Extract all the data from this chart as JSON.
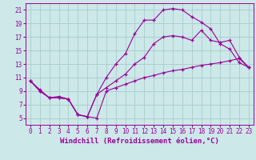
{
  "background_color": "#cce8e8",
  "grid_color": "#aacccc",
  "line_color": "#990099",
  "marker_style": "+",
  "xlabel": "Windchill (Refroidissement éolien,°C)",
  "xlabel_fontsize": 6.5,
  "xtick_fontsize": 5.5,
  "ytick_fontsize": 5.5,
  "xlim": [
    -0.5,
    23.5
  ],
  "ylim": [
    4,
    22
  ],
  "yticks": [
    5,
    7,
    9,
    11,
    13,
    15,
    17,
    19,
    21
  ],
  "xticks": [
    0,
    1,
    2,
    3,
    4,
    5,
    6,
    7,
    8,
    9,
    10,
    11,
    12,
    13,
    14,
    15,
    16,
    17,
    18,
    19,
    20,
    21,
    22,
    23
  ],
  "series": [
    {
      "x": [
        0,
        1,
        2,
        3,
        4,
        5,
        6,
        7,
        8,
        9,
        10,
        11,
        12,
        13,
        14,
        15,
        16,
        17,
        18,
        19,
        20,
        21,
        22,
        23
      ],
      "y": [
        10.5,
        9.2,
        8.0,
        8.2,
        7.8,
        5.5,
        5.2,
        5.0,
        9.0,
        9.5,
        10.0,
        10.5,
        11.0,
        11.3,
        11.7,
        12.0,
        12.2,
        12.5,
        12.8,
        13.0,
        13.2,
        13.5,
        13.8,
        12.5
      ]
    },
    {
      "x": [
        0,
        1,
        2,
        3,
        4,
        5,
        6,
        7,
        8,
        9,
        10,
        11,
        12,
        13,
        14,
        15,
        16,
        17,
        18,
        19,
        20,
        21,
        22,
        23
      ],
      "y": [
        10.5,
        9.0,
        8.0,
        8.0,
        7.8,
        5.5,
        5.2,
        8.5,
        11.0,
        13.0,
        14.5,
        17.5,
        19.5,
        19.5,
        21.0,
        21.2,
        21.0,
        20.0,
        19.2,
        18.2,
        16.0,
        15.2,
        13.2,
        12.5
      ]
    },
    {
      "x": [
        0,
        1,
        2,
        3,
        4,
        5,
        6,
        7,
        8,
        9,
        10,
        11,
        12,
        13,
        14,
        15,
        16,
        17,
        18,
        19,
        20,
        21,
        22,
        23
      ],
      "y": [
        10.5,
        9.0,
        8.0,
        8.0,
        7.8,
        5.5,
        5.2,
        8.5,
        9.5,
        10.5,
        11.5,
        13.0,
        14.0,
        16.0,
        17.0,
        17.2,
        17.0,
        16.5,
        18.0,
        16.5,
        16.2,
        16.5,
        14.0,
        12.5
      ]
    }
  ]
}
